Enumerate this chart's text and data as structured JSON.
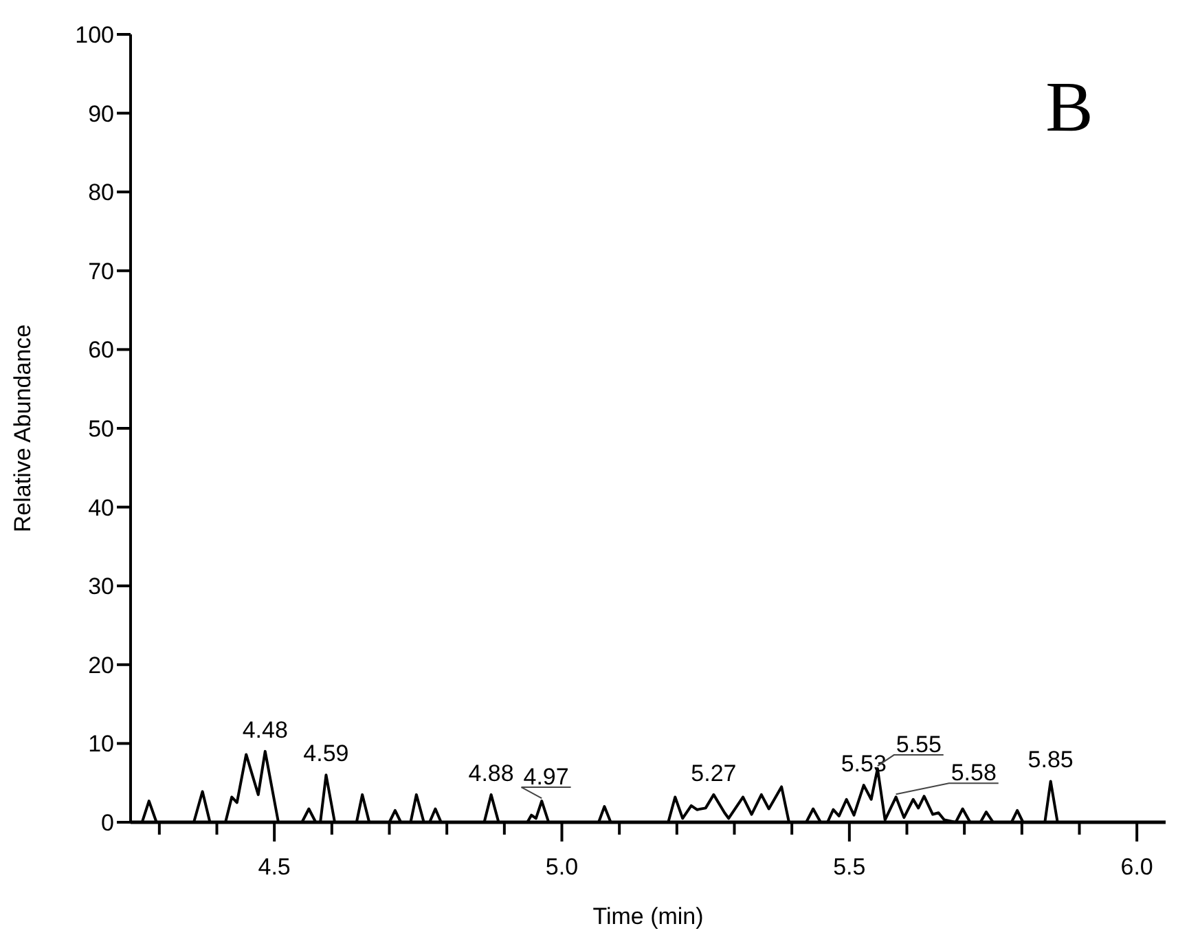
{
  "chart_data": {
    "type": "line",
    "title": "B",
    "xlabel": "Time (min)",
    "ylabel": "Relative Abundance",
    "xlim": [
      4.25,
      6.05
    ],
    "ylim": [
      0,
      100
    ],
    "xticks": [
      {
        "value": 4.3,
        "label": null
      },
      {
        "value": 4.4,
        "label": null
      },
      4.5,
      {
        "value": 4.6,
        "label": null
      },
      {
        "value": 4.7,
        "label": null
      },
      {
        "value": 4.8,
        "label": null
      },
      {
        "value": 4.9,
        "label": null
      },
      {
        "value": 5,
        "label": "5.0"
      },
      {
        "value": 5.1,
        "label": null
      },
      {
        "value": 5.2,
        "label": null
      },
      {
        "value": 5.3,
        "label": null
      },
      {
        "value": 5.4,
        "label": null
      },
      5.5,
      {
        "value": 5.6,
        "label": null
      },
      {
        "value": 5.7,
        "label": null
      },
      {
        "value": 5.8,
        "label": null
      },
      {
        "value": 5.9,
        "label": null
      },
      {
        "value": 6,
        "label": "6.0"
      }
    ],
    "yticks": [
      0,
      10,
      20,
      30,
      40,
      50,
      60,
      70,
      80,
      90,
      100
    ],
    "grid": false,
    "marker": "none",
    "line_style": "solid",
    "series": [
      {
        "color": "#000000",
        "x": [
          4.25,
          4.27,
          4.282,
          4.295,
          4.36,
          4.375,
          4.388,
          4.415,
          4.426,
          4.435,
          4.451,
          4.472,
          4.484,
          4.507,
          4.548,
          4.56,
          4.572,
          4.58,
          4.59,
          4.605,
          4.643,
          4.653,
          4.665,
          4.7,
          4.71,
          4.72,
          4.737,
          4.747,
          4.76,
          4.77,
          4.78,
          4.79,
          4.865,
          4.877,
          4.89,
          4.94,
          4.947,
          4.955,
          4.965,
          4.977,
          5.064,
          5.074,
          5.085,
          5.185,
          5.197,
          5.21,
          5.225,
          5.235,
          5.25,
          5.264,
          5.283,
          5.29,
          5.315,
          5.33,
          5.347,
          5.36,
          5.382,
          5.395,
          5.425,
          5.437,
          5.45,
          5.462,
          5.472,
          5.482,
          5.495,
          5.508,
          5.525,
          5.538,
          5.549,
          5.562,
          5.581,
          5.595,
          5.611,
          5.62,
          5.63,
          5.645,
          5.655,
          5.665,
          5.685,
          5.697,
          5.71,
          5.728,
          5.738,
          5.75,
          5.782,
          5.792,
          5.802,
          5.84,
          5.85,
          5.862,
          6.05
        ],
        "values": [
          0,
          0,
          2.7,
          0,
          0,
          3.9,
          0,
          0,
          3.2,
          2.5,
          8.6,
          3.5,
          9.0,
          0,
          0,
          1.7,
          0,
          0,
          6.0,
          0,
          0,
          3.5,
          0,
          0,
          1.5,
          0,
          0,
          3.5,
          0,
          0,
          1.7,
          0,
          0,
          3.5,
          0,
          0,
          0.9,
          0.5,
          2.7,
          0,
          0,
          2.0,
          0,
          0,
          3.2,
          0.5,
          2.1,
          1.6,
          1.8,
          3.5,
          1.2,
          0.5,
          3.2,
          1.0,
          3.5,
          1.7,
          4.5,
          0,
          0,
          1.7,
          0,
          0,
          1.6,
          0.8,
          2.9,
          0.9,
          4.7,
          2.9,
          6.8,
          0.3,
          3.2,
          0.6,
          2.9,
          1.8,
          3.3,
          1.0,
          1.2,
          0.3,
          0,
          1.7,
          0,
          0,
          1.3,
          0,
          0,
          1.5,
          0,
          0,
          5.2,
          0,
          0
        ]
      }
    ],
    "annotations": [
      {
        "text": "4.48",
        "x": 4.484,
        "y": 9.0
      },
      {
        "text": "4.59",
        "x": 4.59,
        "y": 6.0
      },
      {
        "text": "4.88",
        "x": 4.877,
        "y": 3.5
      },
      {
        "text": "4.97",
        "x": 4.965,
        "y": 2.7
      },
      {
        "text": "5.27",
        "x": 5.264,
        "y": 3.5
      },
      {
        "text": "5.53",
        "x": 5.525,
        "y": 4.7
      },
      {
        "text": "5.55",
        "x": 5.549,
        "y": 6.8
      },
      {
        "text": "5.58",
        "x": 5.581,
        "y": 3.2
      },
      {
        "text": "5.85",
        "x": 5.85,
        "y": 5.2
      }
    ]
  }
}
